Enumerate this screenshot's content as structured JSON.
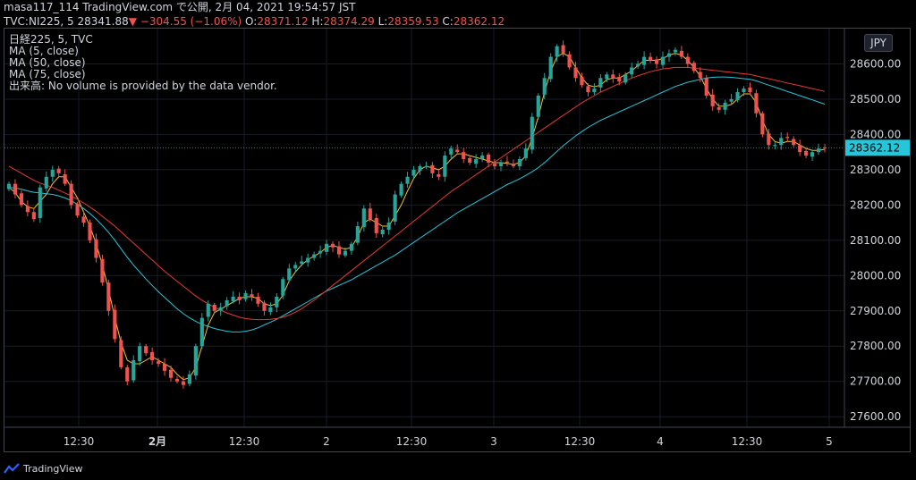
{
  "header": {
    "line1": "masa117_114 TradingView.com で公開, 2月 04, 2021 19:54:57 JST",
    "symbol": "TVC:NI225, 5",
    "price": "28341.88",
    "change": "−304.55 (−1.06%)",
    "o_label": "O:",
    "o": "28371.12",
    "h_label": "H:",
    "h": "28374.29",
    "l_label": "L:",
    "l": "28359.53",
    "c_label": "C:",
    "c": "28362.12"
  },
  "legend": {
    "title": "日経225, 5, TVC",
    "ma5": "MA (5, close)",
    "ma50": "MA (50, close)",
    "ma75": "MA (75, close)",
    "volume_note": "出来高: No volume is provided by the data vendor."
  },
  "currency": "JPY",
  "footer": {
    "brand": "TradingView"
  },
  "colors": {
    "up": "#26a69a",
    "down": "#ef5350",
    "ma5": "#f9c22f",
    "ma50": "#26c6da",
    "ma75": "#e53935",
    "price_tag": "#26c6da"
  },
  "chart_data": {
    "type": "candlestick",
    "ylim": [
      27570,
      28700
    ],
    "y_ticks": [
      27600,
      27700,
      27800,
      27900,
      28000,
      28100,
      28200,
      28300,
      28400,
      28500,
      28600
    ],
    "y_tick_labels": [
      "27600.00",
      "27700.00",
      "27800.00",
      "27900.00",
      "28000.00",
      "28100.00",
      "28200.00",
      "28300.00",
      "28400.00",
      "28500.00",
      "28600.00"
    ],
    "x_tick_labels": [
      "12:30",
      "2月",
      "12:30",
      "2",
      "12:30",
      "3",
      "12:30",
      "4",
      "12:30",
      "5"
    ],
    "last_price": 28362.12,
    "last_price_label": "28362.12",
    "closes": [
      28260,
      28230,
      28200,
      28180,
      28160,
      28250,
      28280,
      28300,
      28290,
      28260,
      28200,
      28170,
      28150,
      28100,
      28050,
      27980,
      27900,
      27820,
      27740,
      27700,
      27760,
      27800,
      27780,
      27760,
      27750,
      27730,
      27710,
      27700,
      27690,
      27720,
      27800,
      27880,
      27920,
      27900,
      27910,
      27930,
      27940,
      27930,
      27950,
      27940,
      27920,
      27900,
      27910,
      27940,
      27990,
      28020,
      28030,
      28040,
      28050,
      28060,
      28070,
      28090,
      28080,
      28060,
      28070,
      28090,
      28140,
      28190,
      28160,
      28120,
      28130,
      28150,
      28230,
      28260,
      28280,
      28300,
      28310,
      28310,
      28290,
      28280,
      28340,
      28360,
      28350,
      28330,
      28320,
      28330,
      28340,
      28320,
      28310,
      28320,
      28320,
      28310,
      28330,
      28360,
      28450,
      28510,
      28560,
      28620,
      28650,
      28630,
      28590,
      28560,
      28540,
      28520,
      28530,
      28560,
      28570,
      28560,
      28550,
      28570,
      28590,
      28600,
      28620,
      28610,
      28600,
      28620,
      28630,
      28640,
      28620,
      28600,
      28580,
      28560,
      28510,
      28480,
      28470,
      28490,
      28500,
      28520,
      28530,
      28520,
      28460,
      28400,
      28370,
      28370,
      28390,
      28390,
      28370,
      28350,
      28340,
      28350,
      28360,
      28362
    ],
    "series": [
      {
        "name": "MA (5, close)",
        "values": [
          28250,
          28235,
          28210,
          28195,
          28190,
          28210,
          28230,
          28260,
          28280,
          28280,
          28250,
          28220,
          28180,
          28140,
          28090,
          28030,
          27960,
          27880,
          27810,
          27760,
          27750,
          27750,
          27760,
          27770,
          27760,
          27750,
          27740,
          27720,
          27705,
          27710,
          27740,
          27800,
          27860,
          27895,
          27905,
          27915,
          27925,
          27935,
          27940,
          27940,
          27935,
          27920,
          27915,
          27920,
          27945,
          27985,
          28010,
          28030,
          28045,
          28055,
          28065,
          28080,
          28085,
          28080,
          28075,
          28080,
          28110,
          28150,
          28160,
          28150,
          28140,
          28140,
          28170,
          28200,
          28240,
          28275,
          28300,
          28310,
          28305,
          28300,
          28310,
          28330,
          28345,
          28345,
          28340,
          28335,
          28330,
          28325,
          28320,
          28320,
          28318,
          28315,
          28320,
          28340,
          28390,
          28450,
          28520,
          28580,
          28620,
          28630,
          28620,
          28590,
          28560,
          28540,
          28535,
          28540,
          28555,
          28560,
          28560,
          28570,
          28580,
          28595,
          28610,
          28610,
          28610,
          28615,
          28625,
          28630,
          28625,
          28610,
          28590,
          28565,
          28530,
          28500,
          28480,
          28480,
          28485,
          28500,
          28515,
          28515,
          28490,
          28440,
          28400,
          28380,
          28375,
          28380,
          28380,
          28370,
          28360,
          28355,
          28355,
          28358
        ]
      },
      {
        "name": "MA (50, close)",
        "values": [
          28250,
          28248,
          28245,
          28240,
          28236,
          28234,
          28232,
          28230,
          28226,
          28220,
          28212,
          28202,
          28190,
          28176,
          28160,
          28142,
          28122,
          28100,
          28076,
          28052,
          28030,
          28010,
          27990,
          27972,
          27954,
          27938,
          27922,
          27906,
          27892,
          27880,
          27870,
          27862,
          27856,
          27850,
          27846,
          27842,
          27840,
          27840,
          27842,
          27846,
          27852,
          27860,
          27868,
          27876,
          27886,
          27896,
          27906,
          27916,
          27926,
          27936,
          27946,
          27956,
          27964,
          27972,
          27980,
          27988,
          27998,
          28008,
          28018,
          28028,
          28038,
          28048,
          28058,
          28070,
          28082,
          28094,
          28106,
          28118,
          28130,
          28142,
          28154,
          28166,
          28178,
          28188,
          28198,
          28208,
          28218,
          28228,
          28238,
          28248,
          28258,
          28266,
          28274,
          28284,
          28294,
          28306,
          28320,
          28336,
          28352,
          28368,
          28382,
          28396,
          28408,
          28420,
          28430,
          28440,
          28448,
          28456,
          28464,
          28472,
          28480,
          28488,
          28496,
          28504,
          28512,
          28520,
          28528,
          28536,
          28542,
          28548,
          28552,
          28556,
          28560,
          28562,
          28563,
          28563,
          28562,
          28560,
          28558,
          28556,
          28552,
          28546,
          28540,
          28534,
          28528,
          28522,
          28516,
          28510,
          28504,
          28498,
          28492,
          28486
        ]
      },
      {
        "name": "MA (75, close)",
        "values": [
          28310,
          28300,
          28290,
          28280,
          28270,
          28262,
          28256,
          28250,
          28242,
          28234,
          28226,
          28216,
          28206,
          28194,
          28182,
          28168,
          28154,
          28140,
          28124,
          28108,
          28092,
          28076,
          28060,
          28044,
          28028,
          28012,
          27998,
          27984,
          27970,
          27956,
          27942,
          27930,
          27920,
          27910,
          27902,
          27894,
          27888,
          27882,
          27878,
          27876,
          27875,
          27875,
          27876,
          27878,
          27882,
          27888,
          27896,
          27906,
          27918,
          27930,
          27944,
          27958,
          27972,
          27986,
          28000,
          28014,
          28028,
          28042,
          28056,
          28070,
          28084,
          28098,
          28112,
          28126,
          28140,
          28154,
          28168,
          28182,
          28196,
          28210,
          28224,
          28238,
          28250,
          28262,
          28274,
          28286,
          28298,
          28310,
          28322,
          28334,
          28346,
          28358,
          28370,
          28382,
          28394,
          28406,
          28418,
          28430,
          28442,
          28454,
          28466,
          28478,
          28490,
          28500,
          28510,
          28520,
          28528,
          28536,
          28544,
          28552,
          28560,
          28566,
          28572,
          28578,
          28582,
          28586,
          28588,
          28590,
          28590,
          28590,
          28588,
          28586,
          28584,
          28582,
          28580,
          28578,
          28576,
          28574,
          28572,
          28570,
          28566,
          28562,
          28558,
          28554,
          28550,
          28546,
          28542,
          28538,
          28534,
          28530,
          28526,
          28522
        ]
      }
    ]
  }
}
